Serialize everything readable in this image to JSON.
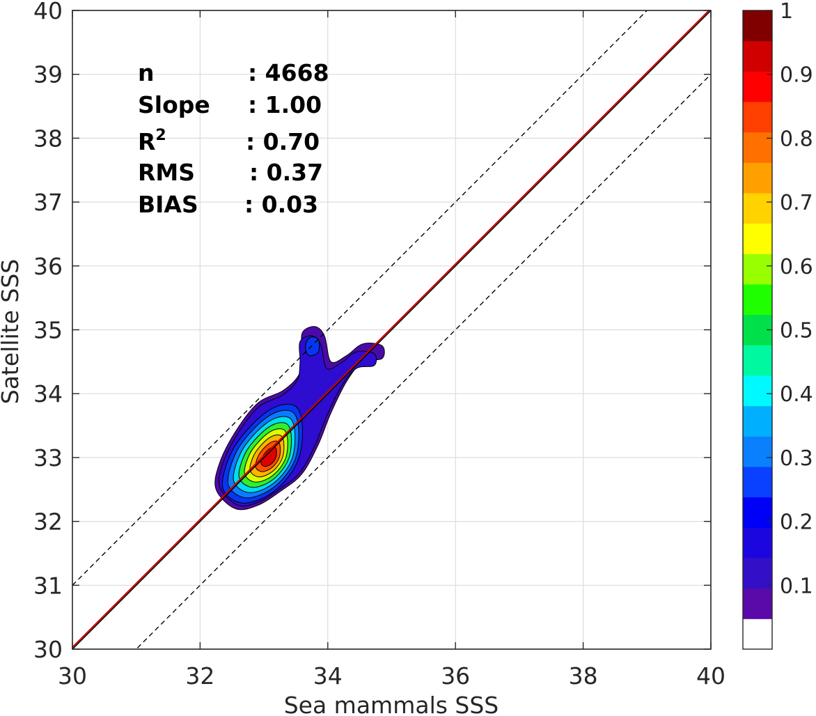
{
  "chart_data": {
    "type": "heatmap",
    "subtype": "2d-density-contour",
    "xlabel": "Sea mammals SSS",
    "ylabel": "Satellite SSS",
    "xlim": [
      30,
      40
    ],
    "ylim": [
      30,
      40
    ],
    "xticks": [
      "30",
      "32",
      "34",
      "36",
      "38",
      "40"
    ],
    "yticks": [
      "30",
      "31",
      "32",
      "33",
      "34",
      "35",
      "36",
      "37",
      "38",
      "39",
      "40"
    ],
    "grid": true,
    "reference_lines": {
      "identity": {
        "from": [
          30,
          30
        ],
        "to": [
          40,
          40
        ],
        "color": "#000000",
        "style": "solid"
      },
      "regression": {
        "slope": 1.0,
        "intercept": 0.03,
        "color": "#d40000",
        "style": "solid"
      },
      "upper_bound": {
        "offset": 1,
        "color": "#000000",
        "style": "dashed"
      },
      "lower_bound": {
        "offset": -1,
        "color": "#000000",
        "style": "dashed"
      }
    },
    "stats": [
      {
        "key": "n",
        "value": ": 4668"
      },
      {
        "key": "Slope",
        "value": ": 1.00"
      },
      {
        "key": "R",
        "sup": "2",
        "value": ": 0.70"
      },
      {
        "key": "RMS",
        "value": ": 0.37"
      },
      {
        "key": "BIAS",
        "value": ": 0.03"
      }
    ],
    "density_peak": {
      "x": 33.1,
      "y": 33.0
    },
    "density_levels": [
      {
        "level": 0.05,
        "color": "#4b0aa8"
      },
      {
        "level": 0.1,
        "color": "#2e0cd0"
      },
      {
        "level": 0.2,
        "color": "#0636f0"
      },
      {
        "level": 0.3,
        "color": "#0a7cff"
      },
      {
        "level": 0.4,
        "color": "#00ddf0"
      },
      {
        "level": 0.5,
        "color": "#2ef02e"
      },
      {
        "level": 0.6,
        "color": "#d8ff00"
      },
      {
        "level": 0.7,
        "color": "#ffb400"
      },
      {
        "level": 0.8,
        "color": "#ff5000"
      },
      {
        "level": 0.9,
        "color": "#dc0000"
      }
    ],
    "colorbar": {
      "range": [
        0,
        1
      ],
      "ticks": [
        "0.1",
        "0.2",
        "0.3",
        "0.4",
        "0.5",
        "0.6",
        "0.7",
        "0.8",
        "0.9",
        "1"
      ],
      "bands": [
        "#ffffff",
        "#5a0aa8",
        "#3310c8",
        "#1c06e0",
        "#0000f6",
        "#0a40ff",
        "#0a80ff",
        "#00b0ff",
        "#00f8ff",
        "#00f8a0",
        "#00e04a",
        "#20ff00",
        "#98ff00",
        "#ffff00",
        "#ffd200",
        "#ffa000",
        "#ff7000",
        "#ff4000",
        "#ff0000",
        "#d00000",
        "#800000"
      ]
    }
  }
}
